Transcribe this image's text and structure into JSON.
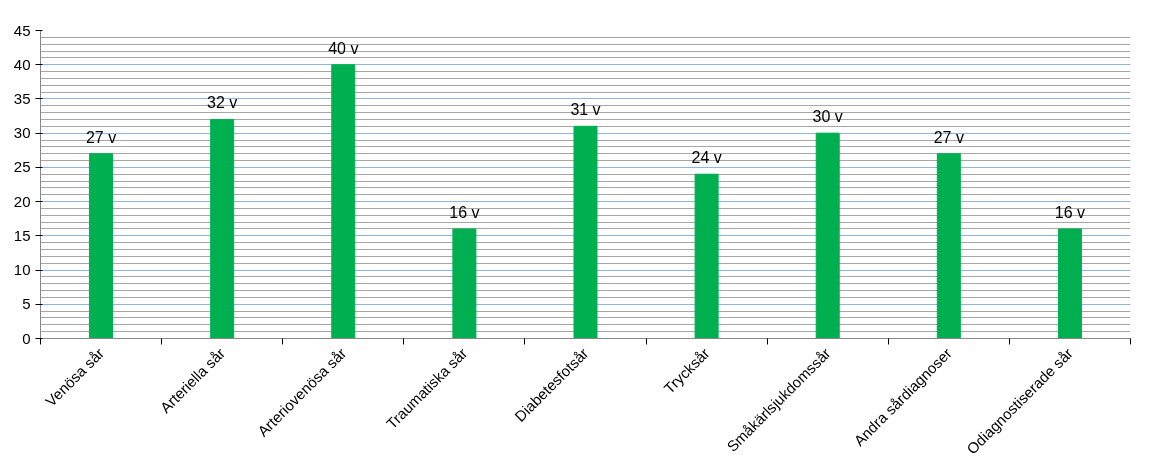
{
  "chart_data": {
    "type": "bar",
    "categories": [
      "Venösa sår",
      "Arteriella sår",
      "Arteriovenösa sår",
      "Traumatiska sår",
      "Diabetesfotsår",
      "Trycksår",
      "Småkärlsjukdomssår",
      "Andra sårdiagnoser",
      "Odiagnostiserade sår"
    ],
    "values": [
      27,
      32,
      40,
      16,
      31,
      24,
      30,
      27,
      16
    ],
    "value_labels": [
      "27 v",
      "32 v",
      "40 v",
      "16 v",
      "31 v",
      "24 v",
      "30 v",
      "27 v",
      "16 v"
    ],
    "color": "#00b050",
    "ylim": [
      0,
      45
    ],
    "yticks": [
      0,
      5,
      10,
      15,
      20,
      25,
      30,
      35,
      40,
      45
    ],
    "grid": "y"
  }
}
